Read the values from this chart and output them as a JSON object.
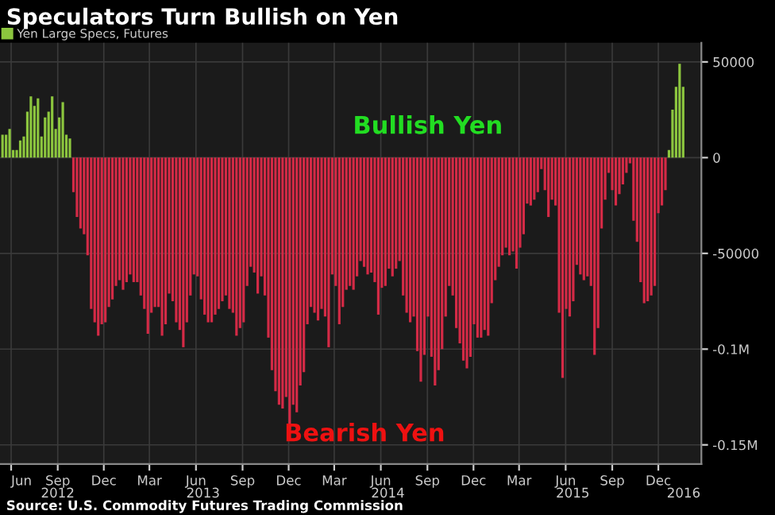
{
  "chart_data": {
    "type": "bar",
    "title": "Speculators Turn Bullish on Yen",
    "x": [
      "2012-05-15",
      "2012-05-22",
      "2012-05-29",
      "2012-06-05",
      "2012-06-12",
      "2012-06-19",
      "2012-06-26",
      "2012-07-03",
      "2012-07-10",
      "2012-07-17",
      "2012-07-24",
      "2012-07-31",
      "2012-08-07",
      "2012-08-14",
      "2012-08-21",
      "2012-08-28",
      "2012-09-04",
      "2012-09-11",
      "2012-09-18",
      "2012-09-25",
      "2012-10-02",
      "2012-10-09",
      "2012-10-16",
      "2012-10-23",
      "2012-10-30",
      "2012-11-06",
      "2012-11-13",
      "2012-11-20",
      "2012-11-27",
      "2012-12-04",
      "2012-12-11",
      "2012-12-18",
      "2012-12-25",
      "2013-01-01",
      "2013-01-08",
      "2013-01-15",
      "2013-01-22",
      "2013-01-29",
      "2013-02-05",
      "2013-02-12",
      "2013-02-19",
      "2013-02-26",
      "2013-03-05",
      "2013-03-12",
      "2013-03-19",
      "2013-03-26",
      "2013-04-02",
      "2013-04-09",
      "2013-04-16",
      "2013-04-23",
      "2013-04-30",
      "2013-05-07",
      "2013-05-14",
      "2013-05-21",
      "2013-05-28",
      "2013-06-04",
      "2013-06-11",
      "2013-06-18",
      "2013-06-25",
      "2013-07-02",
      "2013-07-09",
      "2013-07-16",
      "2013-07-23",
      "2013-07-30",
      "2013-08-06",
      "2013-08-13",
      "2013-08-20",
      "2013-08-27",
      "2013-09-03",
      "2013-09-10",
      "2013-09-17",
      "2013-09-24",
      "2013-10-01",
      "2013-10-08",
      "2013-10-15",
      "2013-10-22",
      "2013-10-29",
      "2013-11-05",
      "2013-11-12",
      "2013-11-19",
      "2013-11-26",
      "2013-12-03",
      "2013-12-10",
      "2013-12-17",
      "2013-12-24",
      "2013-12-31",
      "2014-01-07",
      "2014-01-14",
      "2014-01-21",
      "2014-01-28",
      "2014-02-04",
      "2014-02-11",
      "2014-02-18",
      "2014-02-25",
      "2014-03-04",
      "2014-03-11",
      "2014-03-18",
      "2014-03-25",
      "2014-04-01",
      "2014-04-08",
      "2014-04-15",
      "2014-04-22",
      "2014-04-29",
      "2014-05-06",
      "2014-05-13",
      "2014-05-20",
      "2014-05-27",
      "2014-06-03",
      "2014-06-10",
      "2014-06-17",
      "2014-06-24",
      "2014-07-01",
      "2014-07-08",
      "2014-07-15",
      "2014-07-22",
      "2014-07-29",
      "2014-08-05",
      "2014-08-12",
      "2014-08-19",
      "2014-08-26",
      "2014-09-02",
      "2014-09-09",
      "2014-09-16",
      "2014-09-23",
      "2014-09-30",
      "2014-10-07",
      "2014-10-14",
      "2014-10-21",
      "2014-10-28",
      "2014-11-04",
      "2014-11-11",
      "2014-11-18",
      "2014-11-25",
      "2014-12-02",
      "2014-12-09",
      "2014-12-16",
      "2014-12-23",
      "2014-12-30",
      "2015-01-06",
      "2015-01-13",
      "2015-01-20",
      "2015-01-27",
      "2015-02-03",
      "2015-02-10",
      "2015-02-17",
      "2015-02-24",
      "2015-03-03",
      "2015-03-10",
      "2015-03-17",
      "2015-03-24",
      "2015-03-31",
      "2015-04-07",
      "2015-04-14",
      "2015-04-21",
      "2015-04-28",
      "2015-05-05",
      "2015-05-12",
      "2015-05-19",
      "2015-05-26",
      "2015-06-02",
      "2015-06-09",
      "2015-06-16",
      "2015-06-23",
      "2015-06-30",
      "2015-07-07",
      "2015-07-14",
      "2015-07-21",
      "2015-07-28",
      "2015-08-04",
      "2015-08-11",
      "2015-08-18",
      "2015-08-25",
      "2015-09-01",
      "2015-09-08",
      "2015-09-15",
      "2015-09-22",
      "2015-09-29",
      "2015-10-06",
      "2015-10-13",
      "2015-10-20",
      "2015-10-27",
      "2015-11-03",
      "2015-11-10",
      "2015-11-17",
      "2015-11-24",
      "2015-12-01",
      "2015-12-08",
      "2015-12-15",
      "2015-12-22",
      "2015-12-29",
      "2016-01-05",
      "2016-01-12",
      "2016-01-19"
    ],
    "series": [
      {
        "name": "Yen Large Specs, Futures",
        "color": "#8cc63e",
        "values": [
          12000,
          12000,
          15000,
          4000,
          4000,
          9000,
          11000,
          24000,
          32000,
          27000,
          31000,
          11000,
          21000,
          24000,
          32000,
          15000,
          21000,
          29000,
          12000,
          10000,
          -18000,
          -31000,
          -37000,
          -40000,
          -51000,
          -79000,
          -86000,
          -93000,
          -87000,
          -86000,
          -78000,
          -74000,
          -67000,
          -64000,
          -69000,
          -65000,
          -61000,
          -65000,
          -65000,
          -72000,
          -79000,
          -92000,
          -81000,
          -78000,
          -78000,
          -93000,
          -87000,
          -71000,
          -75000,
          -86000,
          -90000,
          -99000,
          -86000,
          -72000,
          -61000,
          -62000,
          -74000,
          -82000,
          -86000,
          -86000,
          -82000,
          -79000,
          -75000,
          -72000,
          -79000,
          -81000,
          -93000,
          -89000,
          -86000,
          -67000,
          -57000,
          -60000,
          -71000,
          -62000,
          -72000,
          -94000,
          -111000,
          -122000,
          -129000,
          -131000,
          -125000,
          -142000,
          -129000,
          -133000,
          -119000,
          -112000,
          -87000,
          -78000,
          -81000,
          -85000,
          -79000,
          -83000,
          -99000,
          -61000,
          -67000,
          -87000,
          -78000,
          -69000,
          -67000,
          -69000,
          -62000,
          -54000,
          -57000,
          -61000,
          -60000,
          -65000,
          -82000,
          -68000,
          -67000,
          -58000,
          -62000,
          -58000,
          -54000,
          -72000,
          -81000,
          -86000,
          -83000,
          -101000,
          -117000,
          -103000,
          -83000,
          -104000,
          -119000,
          -111000,
          -100000,
          -83000,
          -67000,
          -72000,
          -89000,
          -97000,
          -106000,
          -110000,
          -104000,
          -87000,
          -94000,
          -94000,
          -90000,
          -93000,
          -76000,
          -64000,
          -57000,
          -51000,
          -47000,
          -51000,
          -49000,
          -58000,
          -47000,
          -40000,
          -24000,
          -25000,
          -22000,
          -18000,
          -6000,
          -17000,
          -31000,
          -22000,
          -25000,
          -81000,
          -115000,
          -79000,
          -83000,
          -75000,
          -56000,
          -61000,
          -64000,
          -62000,
          -67000,
          -103000,
          -89000,
          -37000,
          -22000,
          -8000,
          -17000,
          -25000,
          -19000,
          -14000,
          -8000,
          -3000,
          -33000,
          -44000,
          -65000,
          -76000,
          -75000,
          -72000,
          -67000,
          -29000,
          -25000,
          -17000,
          4000,
          25000,
          37000,
          49000,
          37000
        ],
        "colors": [
          "#8cc63e",
          "#8cc63e",
          "#8cc63e",
          "#8cc63e",
          "#8cc63e",
          "#8cc63e",
          "#8cc63e",
          "#8cc63e",
          "#8cc63e",
          "#8cc63e",
          "#8cc63e",
          "#8cc63e",
          "#8cc63e",
          "#8cc63e",
          "#8cc63e",
          "#8cc63e",
          "#8cc63e",
          "#8cc63e",
          "#8cc63e",
          "#8cc63e",
          "#d42a46",
          "#d42a46",
          "#d42a46",
          "#d42a46",
          "#d42a46",
          "#d42a46",
          "#d42a46",
          "#d42a46",
          "#d42a46",
          "#d42a46",
          "#d42a46",
          "#d42a46",
          "#d42a46",
          "#d42a46",
          "#d42a46",
          "#d42a46",
          "#d42a46",
          "#d42a46",
          "#d42a46",
          "#d42a46",
          "#d42a46",
          "#d42a46",
          "#d42a46",
          "#d42a46",
          "#d42a46",
          "#d42a46",
          "#d42a46",
          "#d42a46",
          "#d42a46",
          "#d42a46",
          "#d42a46",
          "#d42a46",
          "#d42a46",
          "#d42a46",
          "#d42a46",
          "#d42a46",
          "#d42a46",
          "#d42a46",
          "#d42a46",
          "#d42a46",
          "#d42a46",
          "#d42a46",
          "#d42a46",
          "#d42a46",
          "#d42a46",
          "#d42a46",
          "#d42a46",
          "#d42a46",
          "#d42a46",
          "#d42a46",
          "#d42a46",
          "#d42a46",
          "#d42a46",
          "#d42a46",
          "#d42a46",
          "#d42a46",
          "#d42a46",
          "#d42a46",
          "#d42a46",
          "#d42a46",
          "#d42a46",
          "#d42a46",
          "#d42a46",
          "#d42a46",
          "#d42a46",
          "#d42a46",
          "#d42a46",
          "#d42a46",
          "#d42a46",
          "#d42a46",
          "#d42a46",
          "#d42a46",
          "#d42a46",
          "#d42a46",
          "#d42a46",
          "#d42a46",
          "#d42a46",
          "#d42a46",
          "#d42a46",
          "#d42a46",
          "#d42a46",
          "#d42a46",
          "#d42a46",
          "#d42a46",
          "#d42a46",
          "#d42a46",
          "#d42a46",
          "#d42a46",
          "#d42a46",
          "#d42a46",
          "#d42a46",
          "#d42a46",
          "#d42a46",
          "#d42a46",
          "#d42a46",
          "#d42a46",
          "#d42a46",
          "#d42a46",
          "#d42a46",
          "#d42a46",
          "#d42a46",
          "#d42a46",
          "#d42a46",
          "#d42a46",
          "#d42a46",
          "#d42a46",
          "#d42a46",
          "#d42a46",
          "#d42a46",
          "#d42a46",
          "#d42a46",
          "#d42a46",
          "#d42a46",
          "#d42a46",
          "#d42a46",
          "#d42a46",
          "#d42a46",
          "#d42a46",
          "#d42a46",
          "#d42a46",
          "#d42a46",
          "#d42a46",
          "#d42a46",
          "#d42a46",
          "#d42a46",
          "#d42a46",
          "#d42a46",
          "#d42a46",
          "#d42a46",
          "#d42a46",
          "#d42a46",
          "#d42a46",
          "#d42a46",
          "#d42a46",
          "#d42a46",
          "#d42a46",
          "#d42a46",
          "#d42a46",
          "#d42a46",
          "#d42a46",
          "#d42a46",
          "#d42a46",
          "#d42a46",
          "#d42a46",
          "#d42a46",
          "#d42a46",
          "#d42a46",
          "#d42a46",
          "#d42a46",
          "#d42a46",
          "#d42a46",
          "#d42a46",
          "#d42a46",
          "#d42a46",
          "#d42a46",
          "#d42a46",
          "#d42a46",
          "#d42a46",
          "#d42a46",
          "#d42a46",
          "#d42a46",
          "#d42a46",
          "#d42a46",
          "#d42a46",
          "#d42a46",
          "#d42a46",
          "#d42a46",
          "#d42a46",
          "#8cc63e",
          "#8cc63e",
          "#8cc63e",
          "#8cc63e",
          "#8cc63e"
        ]
      }
    ],
    "xlim": [
      "2012-05-10",
      "2016-02-24"
    ],
    "xticks": [
      {
        "value": "2012-06-01",
        "label": "Jun"
      },
      {
        "value": "2012-09-01",
        "label": "Sep"
      },
      {
        "value": "2012-12-01",
        "label": "Dec"
      },
      {
        "value": "2013-03-01",
        "label": "Mar"
      },
      {
        "value": "2013-06-01",
        "label": "Jun"
      },
      {
        "value": "2013-09-01",
        "label": "Sep"
      },
      {
        "value": "2013-12-01",
        "label": "Dec"
      },
      {
        "value": "2014-03-01",
        "label": "Mar"
      },
      {
        "value": "2014-06-01",
        "label": "Jun"
      },
      {
        "value": "2014-09-01",
        "label": "Sep"
      },
      {
        "value": "2014-12-01",
        "label": "Dec"
      },
      {
        "value": "2015-03-01",
        "label": "Mar"
      },
      {
        "value": "2015-06-01",
        "label": "Jun"
      },
      {
        "value": "2015-09-01",
        "label": "Sep"
      },
      {
        "value": "2015-12-01",
        "label": "Dec"
      }
    ],
    "x2lim": [
      "2012-05-10",
      "2016-02-24"
    ],
    "x2ticks": [
      {
        "value": "2012-09-01",
        "label": "2012"
      },
      {
        "value": "2013-06-15",
        "label": "2013"
      },
      {
        "value": "2014-06-15",
        "label": "2014"
      },
      {
        "value": "2015-06-15",
        "label": "2015"
      },
      {
        "value": "2016-01-20",
        "label": "2016"
      }
    ],
    "ylim": [
      -160000,
      60000
    ],
    "yticks": [
      50000,
      0,
      -50000,
      {
        "value": -100000,
        "label": "-0.1M"
      },
      {
        "value": -150000,
        "label": "-0.15M"
      }
    ],
    "grid": true,
    "legend": "top left",
    "annotations": [
      "Bullish Yen",
      "Bearish Yen",
      "Source: U.S. Commodity Futures Trading Commission"
    ]
  }
}
